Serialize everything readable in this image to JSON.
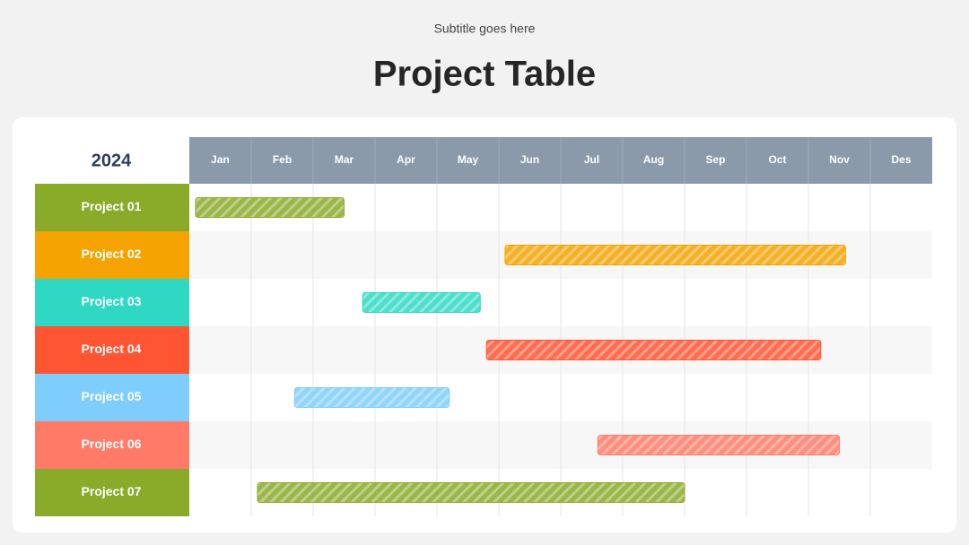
{
  "subtitle": "Subtitle goes here",
  "chart_data": {
    "type": "gantt",
    "title": "Project Table",
    "year_label": "2024",
    "categories": [
      "Jan",
      "Feb",
      "Mar",
      "Apr",
      "May",
      "Jun",
      "Jul",
      "Aug",
      "Sep",
      "Oct",
      "Nov",
      "Des"
    ],
    "tasks": [
      {
        "name": "Project 01",
        "color": "#8aab2a",
        "start": 0.1,
        "end": 2.5
      },
      {
        "name": "Project 02",
        "color": "#f5a300",
        "start": 5.1,
        "end": 10.6
      },
      {
        "name": "Project 03",
        "color": "#2ed8c3",
        "start": 2.8,
        "end": 4.7
      },
      {
        "name": "Project 04",
        "color": "#ff5533",
        "start": 4.8,
        "end": 10.2
      },
      {
        "name": "Project 05",
        "color": "#7ecdfc",
        "start": 1.7,
        "end": 4.2
      },
      {
        "name": "Project 06",
        "color": "#ff7b68",
        "start": 6.6,
        "end": 10.5
      },
      {
        "name": "Project 07",
        "color": "#8aab2a",
        "start": 1.1,
        "end": 8.0
      }
    ]
  }
}
